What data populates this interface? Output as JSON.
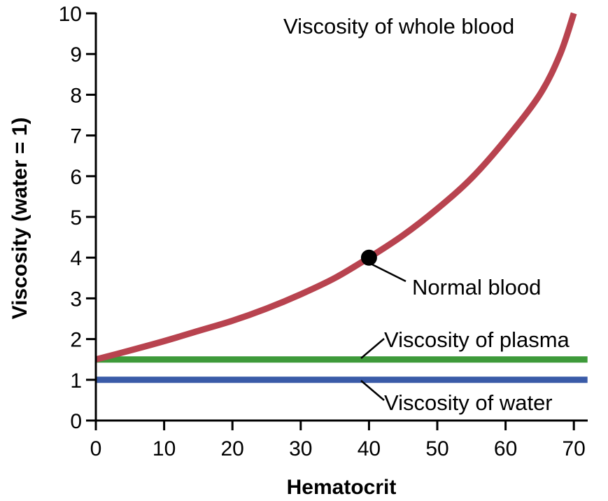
{
  "chart_data": {
    "type": "line",
    "xlabel": "Hematocrit",
    "ylabel": "Viscosity (water = 1)",
    "xlim": [
      0,
      72
    ],
    "ylim": [
      0,
      10
    ],
    "x_ticks": [
      "0",
      "10",
      "20",
      "30",
      "40",
      "50",
      "60",
      "70"
    ],
    "y_ticks": [
      "0",
      "1",
      "2",
      "3",
      "4",
      "5",
      "6",
      "7",
      "8",
      "9",
      "10"
    ],
    "grid": false,
    "legend": "none",
    "series": [
      {
        "name": "Viscosity of whole blood",
        "color": "#b8434f",
        "x": [
          0,
          5,
          10,
          15,
          20,
          25,
          30,
          35,
          40,
          45,
          50,
          55,
          60,
          65,
          68,
          70
        ],
        "y": [
          1.5,
          1.72,
          1.95,
          2.2,
          2.45,
          2.75,
          3.1,
          3.5,
          4.0,
          4.55,
          5.2,
          5.95,
          6.9,
          8.0,
          9.0,
          10.0
        ]
      },
      {
        "name": "Viscosity of plasma",
        "color": "#3e9a3a",
        "x": [
          0,
          72
        ],
        "y": [
          1.5,
          1.5
        ]
      },
      {
        "name": "Viscosity of water",
        "color": "#3a5ba8",
        "x": [
          0,
          72
        ],
        "y": [
          1.0,
          1.0
        ]
      }
    ],
    "annotations": [
      {
        "text": "Normal blood",
        "x": 40,
        "y": 4.0
      }
    ]
  }
}
